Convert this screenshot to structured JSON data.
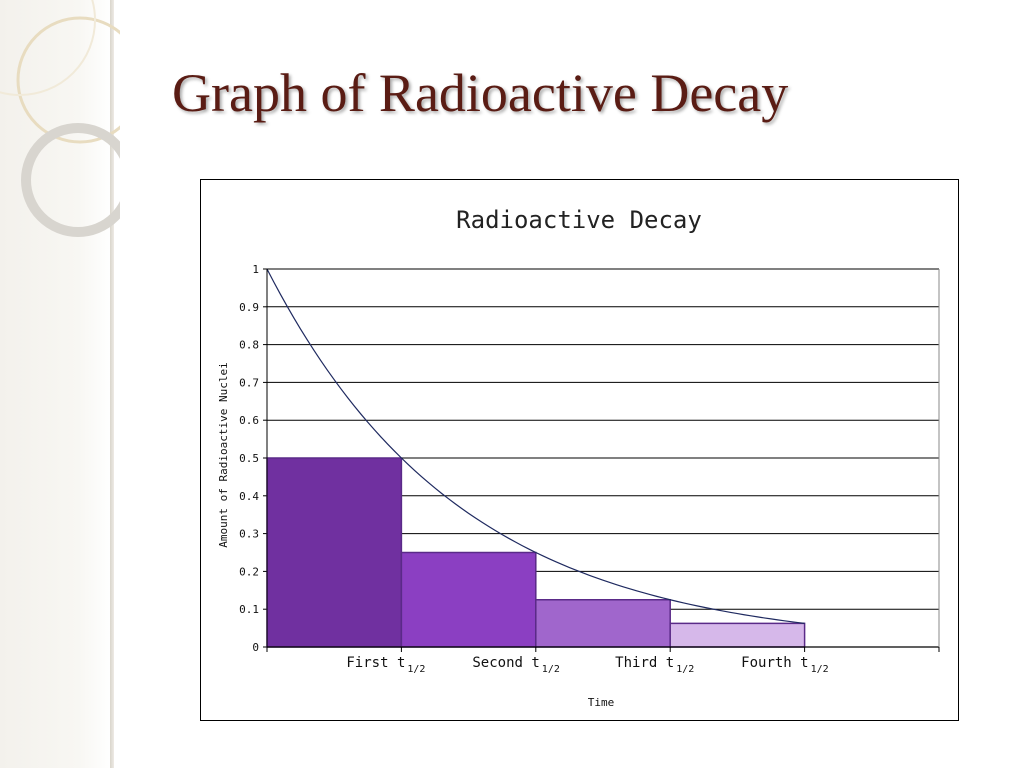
{
  "slide": {
    "title": "Graph of Radioactive Decay"
  },
  "chart_data": {
    "type": "bar",
    "title": "Radioactive Decay",
    "xlabel": "Time",
    "ylabel": "Amount of Radioactive Nuclei",
    "ylim": [
      0,
      1
    ],
    "yticks": [
      "0",
      "0.1",
      "0.2",
      "0.3",
      "0.4",
      "0.5",
      "0.6",
      "0.7",
      "0.8",
      "0.9",
      "1"
    ],
    "grid": true,
    "categories": [
      {
        "label": "First",
        "symbol": "t",
        "subscript": "1/2"
      },
      {
        "label": "Second",
        "symbol": "t",
        "subscript": "1/2"
      },
      {
        "label": "Third",
        "symbol": "t",
        "subscript": "1/2"
      },
      {
        "label": "Fourth",
        "symbol": "t",
        "subscript": "1/2"
      }
    ],
    "values": [
      0.5,
      0.25,
      0.125,
      0.0625
    ],
    "curve": {
      "x": [
        0,
        1,
        2,
        3,
        4
      ],
      "y": [
        1,
        0.5,
        0.25,
        0.125,
        0.0625
      ]
    },
    "colors": {
      "bars": [
        "#7030a0",
        "#8b3fc2",
        "#a066cc",
        "#d6b8ea"
      ],
      "bar_stroke": "#5a2a88",
      "curve": "#1f2a60",
      "grid": "#000000"
    }
  }
}
